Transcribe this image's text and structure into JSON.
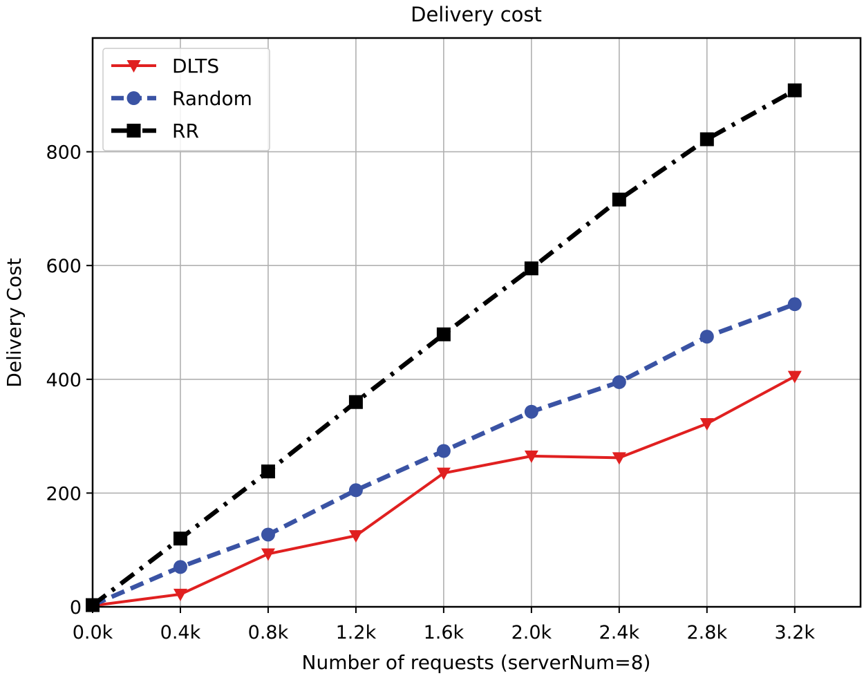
{
  "chart_data": {
    "type": "line",
    "title": "Delivery cost",
    "xlabel": "Number of requests (serverNum=8)",
    "ylabel": "Delivery Cost",
    "x": [
      0,
      0.4,
      0.8,
      1.2,
      1.6,
      2.0,
      2.4,
      2.8,
      3.2
    ],
    "x_tick_labels": [
      "0.0k",
      "0.4k",
      "0.8k",
      "1.2k",
      "1.6k",
      "2.0k",
      "2.4k",
      "2.8k",
      "3.2k"
    ],
    "y_ticks": [
      0,
      200,
      400,
      600,
      800
    ],
    "xlim": [
      0,
      3.5
    ],
    "ylim": [
      0,
      1000
    ],
    "grid": true,
    "legend_position": "top-left",
    "series": [
      {
        "name": "DLTS",
        "color": "#e02020",
        "marker": "triangle-down",
        "linestyle": "solid",
        "values": [
          2,
          22,
          93,
          125,
          235,
          265,
          262,
          322,
          405
        ]
      },
      {
        "name": "Random",
        "color": "#3a53a4",
        "marker": "circle",
        "linestyle": "dashed",
        "values": [
          3,
          70,
          127,
          205,
          274,
          343,
          395,
          475,
          532
        ]
      },
      {
        "name": "RR",
        "color": "#000000",
        "marker": "square",
        "linestyle": "dashdot",
        "values": [
          3,
          120,
          238,
          360,
          479,
          595,
          716,
          822,
          908
        ]
      }
    ]
  }
}
